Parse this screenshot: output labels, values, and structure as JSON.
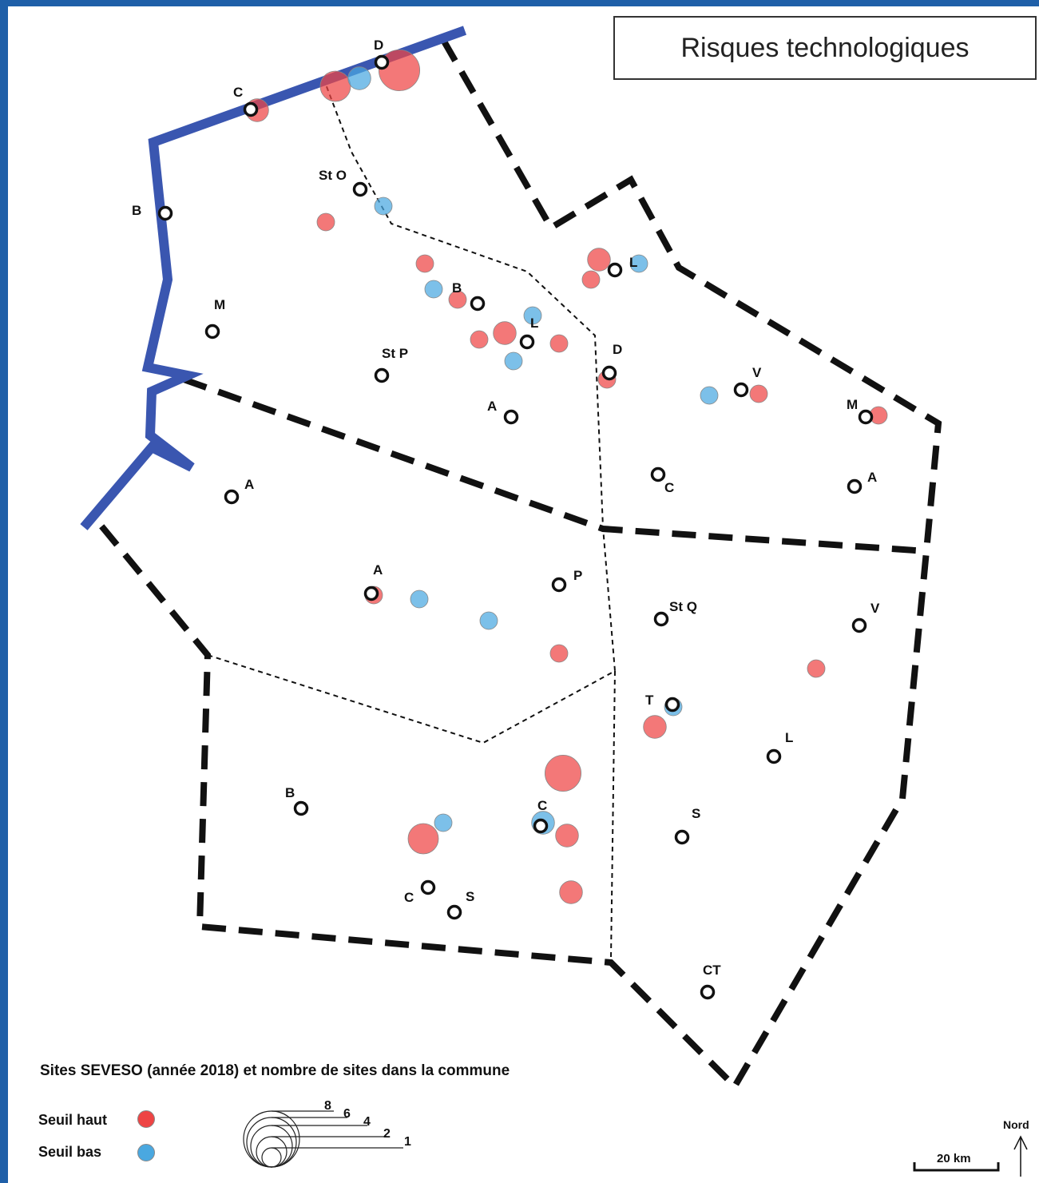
{
  "title": "Risques technologiques",
  "colors": {
    "frame": "#1f5fa8",
    "river": "#3a56b0",
    "seuil_haut": "#ee4444",
    "seuil_bas": "#4aa8e0",
    "border": "#111111"
  },
  "legend": {
    "title": "Sites SEVESO (année 2018) et nombre de sites dans la commune",
    "seuil_haut_label": "Seuil haut",
    "seuil_bas_label": "Seuil bas",
    "size_values": [
      "8",
      "6",
      "4",
      "2",
      "1"
    ],
    "scale_label": "20 km",
    "north_label": "Nord"
  },
  "towns": [
    "D",
    "C",
    "St O",
    "B",
    "M",
    "L",
    "B",
    "L",
    "St P",
    "D",
    "V",
    "A",
    "M",
    "C",
    "A",
    "A",
    "A",
    "P",
    "St Q",
    "V",
    "T",
    "L",
    "B",
    "C",
    "S",
    "C",
    "S",
    "CT"
  ],
  "sites": [
    {
      "type": "haut",
      "count": 8
    },
    {
      "type": "haut",
      "count": 4
    },
    {
      "type": "bas",
      "count": 2
    },
    {
      "type": "haut",
      "count": 2
    },
    {
      "type": "bas",
      "count": 1
    },
    {
      "type": "haut",
      "count": 1
    },
    {
      "type": "haut",
      "count": 1
    },
    {
      "type": "bas",
      "count": 1
    },
    {
      "type": "haut",
      "count": 1
    },
    {
      "type": "haut",
      "count": 2
    },
    {
      "type": "bas",
      "count": 1
    },
    {
      "type": "haut",
      "count": 1
    },
    {
      "type": "haut",
      "count": 2
    },
    {
      "type": "haut",
      "count": 1
    },
    {
      "type": "bas",
      "count": 1
    },
    {
      "type": "bas",
      "count": 1
    },
    {
      "type": "haut",
      "count": 1
    },
    {
      "type": "haut",
      "count": 1
    },
    {
      "type": "haut",
      "count": 1
    },
    {
      "type": "bas",
      "count": 1
    },
    {
      "type": "haut",
      "count": 1
    },
    {
      "type": "haut",
      "count": 1
    },
    {
      "type": "bas",
      "count": 1
    },
    {
      "type": "haut",
      "count": 6
    },
    {
      "type": "haut",
      "count": 2
    },
    {
      "type": "bas",
      "count": 1
    },
    {
      "type": "bas",
      "count": 1
    },
    {
      "type": "bas",
      "count": 1
    },
    {
      "type": "haut",
      "count": 1
    },
    {
      "type": "haut",
      "count": 1
    },
    {
      "type": "haut",
      "count": 2
    },
    {
      "type": "haut",
      "count": 4
    },
    {
      "type": "haut",
      "count": 2
    },
    {
      "type": "bas",
      "count": 2
    }
  ]
}
